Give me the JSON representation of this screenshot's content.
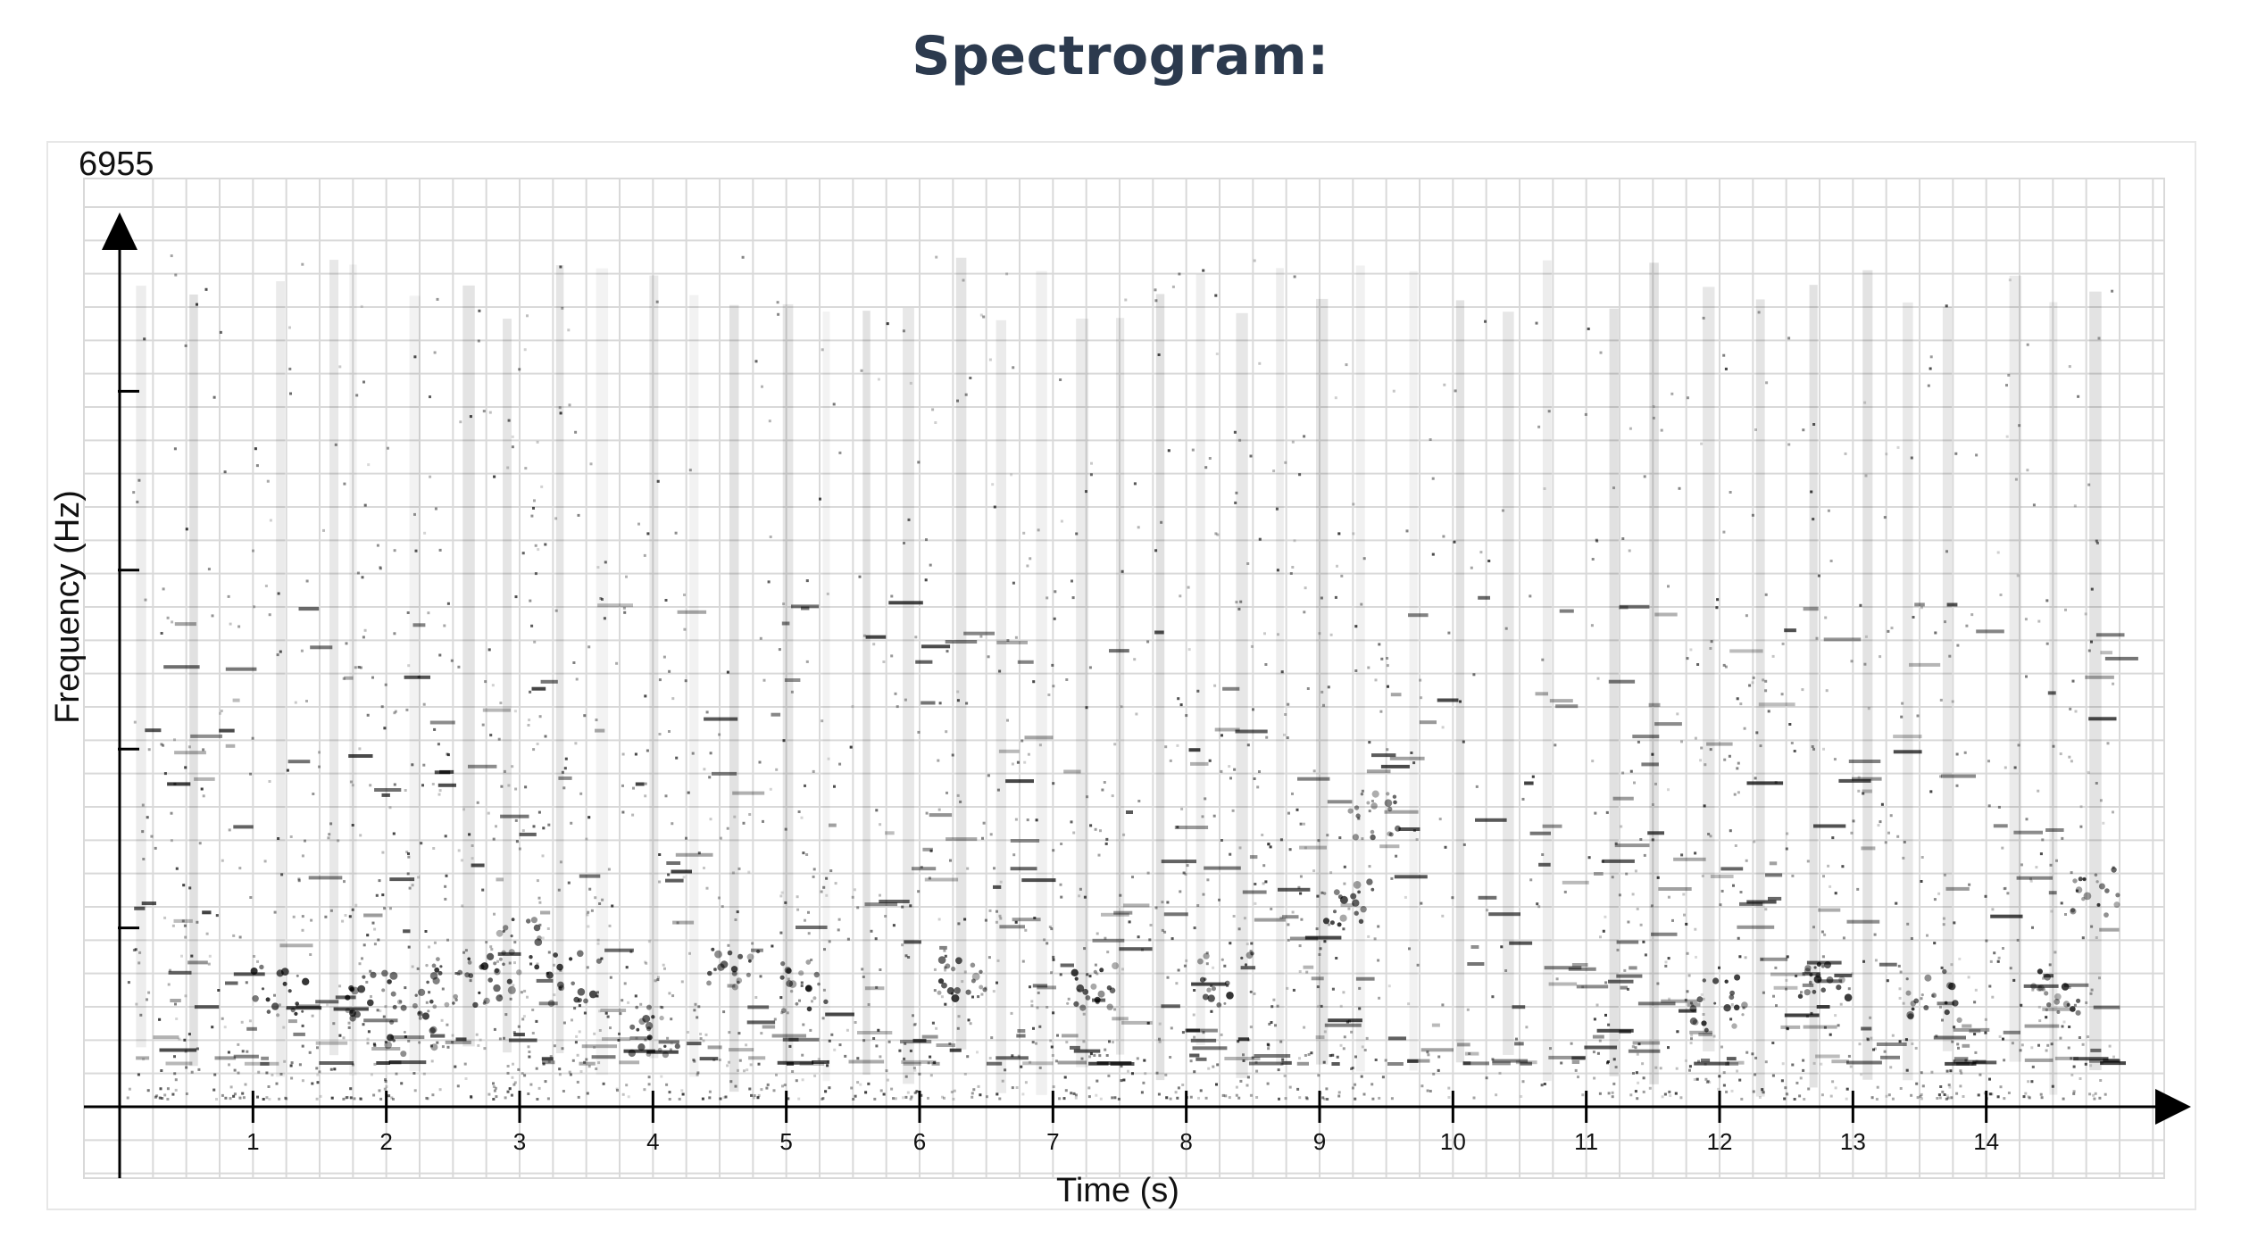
{
  "page": {
    "title": "Spectrogram:"
  },
  "chart_data": {
    "type": "heatmap",
    "title": "Spectrogram:",
    "xlabel": "Time (s)",
    "ylabel": "Frequency (Hz)",
    "y_max_label": "6955",
    "xlim": [
      0,
      15
    ],
    "ylim": [
      0,
      6955
    ],
    "x_ticks": [
      1,
      2,
      3,
      4,
      5,
      6,
      7,
      8,
      9,
      10,
      11,
      12,
      13,
      14
    ],
    "x_tick_labels": [
      "1",
      "2",
      "3",
      "4",
      "5",
      "6",
      "7",
      "8",
      "9",
      "10",
      "11",
      "12",
      "13",
      "14"
    ],
    "y_ticks": [
      1391,
      2782,
      4173,
      5564
    ],
    "grid": true,
    "colors": {
      "ink": "#000000",
      "grid": "#d9d9d9",
      "title": "#2c3a4e"
    }
  }
}
